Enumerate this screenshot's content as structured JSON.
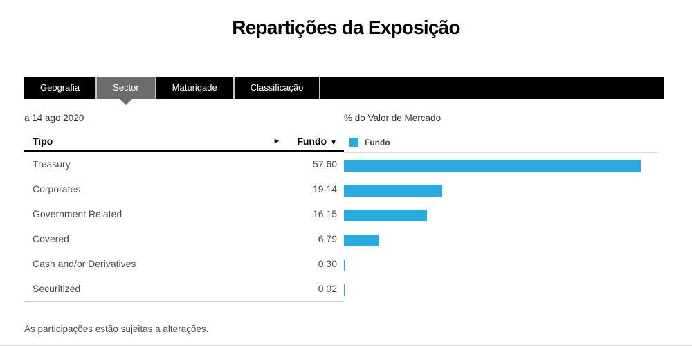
{
  "page": {
    "title": "Repartições da Exposição",
    "footer_note": "As participações estão sujeitas a alterações."
  },
  "tabs": [
    {
      "id": "geografia",
      "label": "Geografia",
      "active": false
    },
    {
      "id": "sector",
      "label": "Sector",
      "active": true
    },
    {
      "id": "maturidade",
      "label": "Maturidade",
      "active": false
    },
    {
      "id": "classificacao",
      "label": "Classificação",
      "active": false
    }
  ],
  "as_of_date": "a 14 ago 2020",
  "table": {
    "col_type_header": "Tipo",
    "col_value_header": "Fundo",
    "sort_indicator": "▼",
    "expand_indicator": "►",
    "rows": [
      {
        "label": "Treasury",
        "value": "57,60"
      },
      {
        "label": "Corporates",
        "value": "19,14"
      },
      {
        "label": "Government Related",
        "value": "16,15"
      },
      {
        "label": "Covered",
        "value": "6,79"
      },
      {
        "label": "Cash and/or Derivatives",
        "value": "0,30"
      },
      {
        "label": "Securitized",
        "value": "0,02"
      }
    ]
  },
  "chart": {
    "axis_label": "% do Valor de Mercado",
    "legend": [
      {
        "label": "Fundo",
        "color": "#29abe2"
      }
    ]
  },
  "chart_data": {
    "type": "bar",
    "orientation": "horizontal",
    "title": "% do Valor de Mercado",
    "categories": [
      "Treasury",
      "Corporates",
      "Government Related",
      "Covered",
      "Cash and/or Derivatives",
      "Securitized"
    ],
    "series": [
      {
        "name": "Fundo",
        "values": [
          57.6,
          19.14,
          16.15,
          6.79,
          0.3,
          0.02
        ]
      }
    ],
    "xlim": [
      0,
      61
    ],
    "bar_color": "#29abe2",
    "legend_position": "top-left",
    "grid": false
  },
  "theme": {
    "accent_blue": "#29abe2",
    "tab_bar_bg": "#000000",
    "active_tab_bg": "#6b6b6b"
  }
}
